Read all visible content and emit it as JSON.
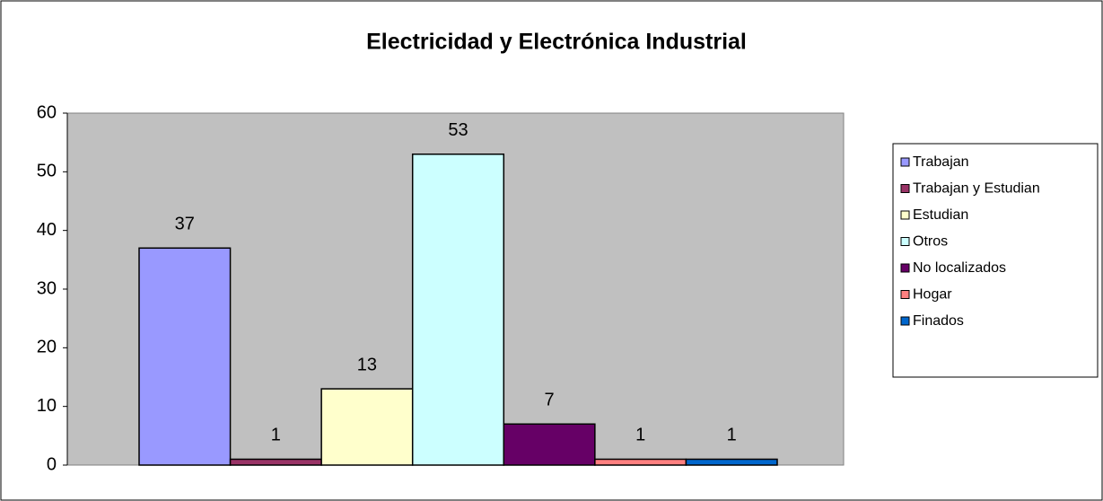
{
  "chart_data": {
    "type": "bar",
    "title": "Electricidad y Electrónica Industrial",
    "series": [
      {
        "name": "Trabajan",
        "color": "#9999ff",
        "values": [
          37
        ]
      },
      {
        "name": "Trabajan y Estudian",
        "color": "#993366",
        "values": [
          1
        ]
      },
      {
        "name": "Estudian",
        "color": "#ffffcc",
        "values": [
          13
        ]
      },
      {
        "name": "Otros",
        "color": "#ccffff",
        "values": [
          53
        ]
      },
      {
        "name": "No localizados",
        "color": "#660066",
        "values": [
          7
        ]
      },
      {
        "name": "Hogar",
        "color": "#ff8080",
        "values": [
          1
        ]
      },
      {
        "name": "Finados",
        "color": "#0066cc",
        "values": [
          1
        ]
      }
    ],
    "ylim": [
      0,
      60
    ],
    "yticks": [
      0,
      10,
      20,
      30,
      40,
      50,
      60
    ],
    "grid": false,
    "legend": "right"
  }
}
